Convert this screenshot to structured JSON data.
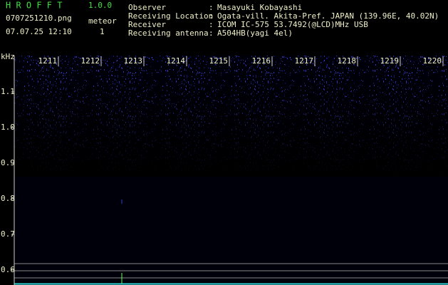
{
  "header": {
    "app_name": "H R O F F T",
    "version": "1.0.0",
    "file_name": "0707251210.png",
    "timestamp": "07.07.25 12:10",
    "meteor_label": "meteor",
    "meteor_count": "1",
    "info": [
      {
        "label": "Observer",
        "value": "Masayuki Kobayashi"
      },
      {
        "label": "Receiving Location",
        "value": "Ogata-vill. Akita-Pref. JAPAN (139.96E, 40.02N)"
      },
      {
        "label": "Receiver",
        "value": "ICOM IC-575 53.7492(@LCD)MHz USB"
      },
      {
        "label": "Receiving antenna",
        "value": "A504HB(yagi 4el)"
      }
    ],
    "separator": ":"
  },
  "spectrogram": {
    "frequency_unit": "kHz",
    "frequency_ticks": [
      "1.1",
      "1.0",
      "0.9",
      "0.8",
      "0.7",
      "0.6"
    ],
    "time_ticks": [
      "1211",
      "1212",
      "1213",
      "1214",
      "1215",
      "1216",
      "1217",
      "1218",
      "1219",
      "1220"
    ]
  }
}
